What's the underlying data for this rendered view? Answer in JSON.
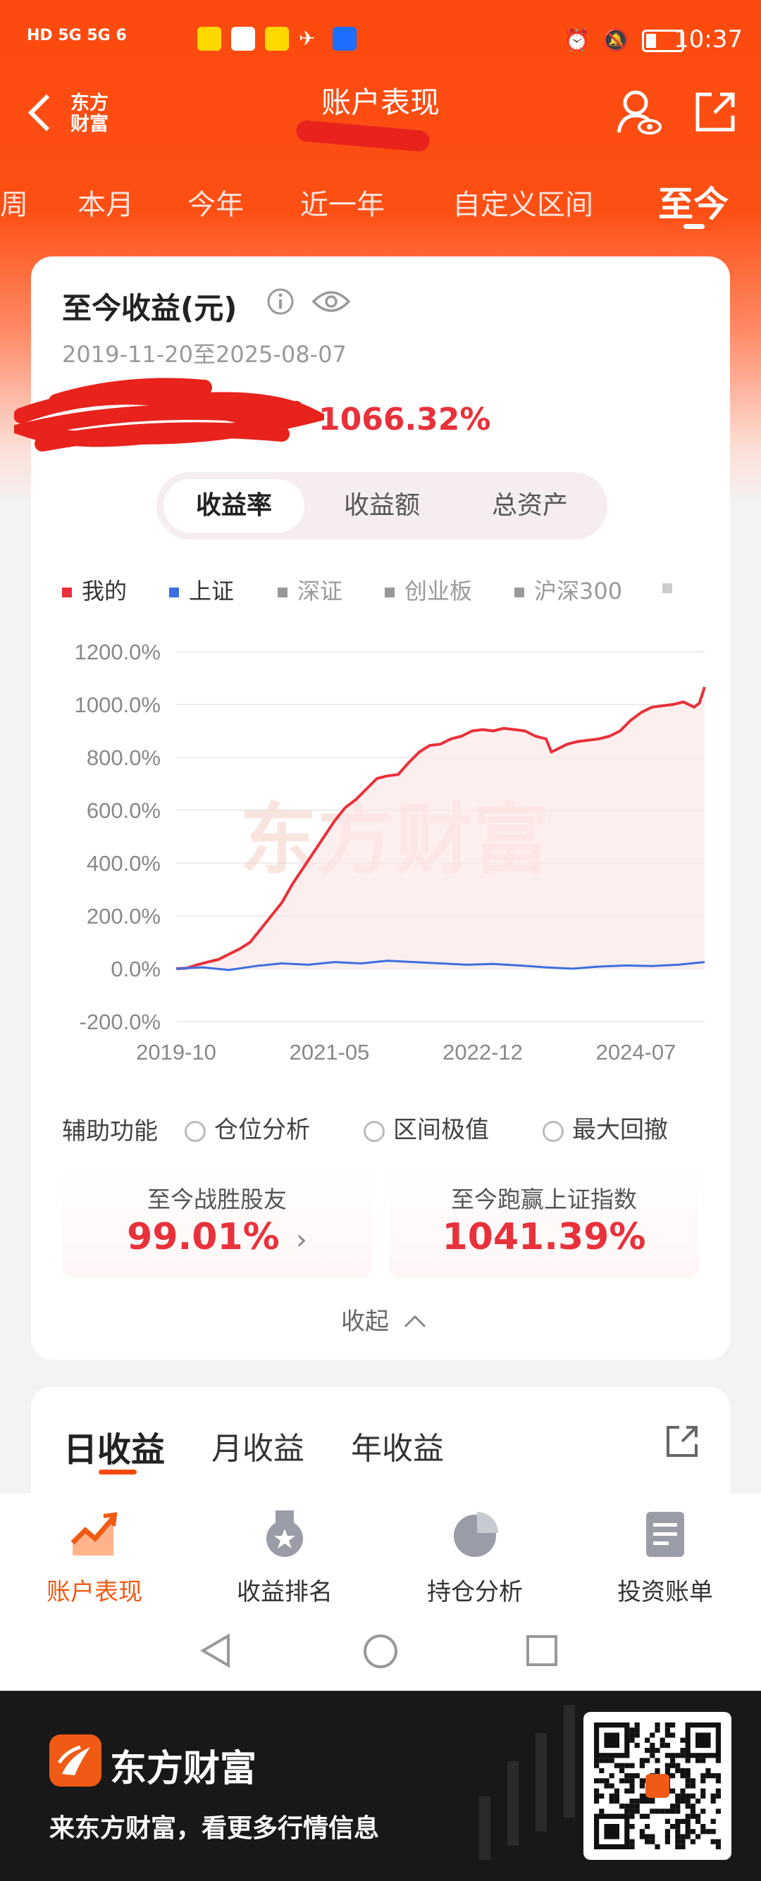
{
  "status_bar": {
    "left": "HD 5G 5G 6",
    "time": "10:37"
  },
  "header": {
    "title": "账户表现",
    "logo_text": "东方财富",
    "back_icon": "chevron-left-icon",
    "user_icon": "user-eye-icon",
    "share_icon": "share-icon"
  },
  "period_tabs": [
    {
      "label": "周"
    },
    {
      "label": "本月"
    },
    {
      "label": "今年"
    },
    {
      "label": "近一年"
    },
    {
      "label": "自定义区间"
    },
    {
      "label": "至今",
      "active": true
    }
  ],
  "summary": {
    "title": "至今收益(元)",
    "date_range": "2019-11-20至2025-08-07",
    "return_pct": "1066.32%"
  },
  "segment": {
    "options": [
      "收益率",
      "收益额",
      "总资产"
    ],
    "selected": "收益率"
  },
  "legend": [
    {
      "label": "我的",
      "color": "#e8313a"
    },
    {
      "label": "上证",
      "color": "#3c6fe0"
    },
    {
      "label": "深证",
      "color": "#999999"
    },
    {
      "label": "创业板",
      "color": "#999999"
    },
    {
      "label": "沪深300",
      "color": "#999999"
    }
  ],
  "chart_data": {
    "type": "line",
    "y_ticks": [
      "1200.0%",
      "1000.0%",
      "800.0%",
      "600.0%",
      "400.0%",
      "200.0%",
      "0.0%",
      "-200.0%"
    ],
    "x_ticks": [
      "2019-10",
      "2021-05",
      "2022-12",
      "2024-07"
    ],
    "ylim": [
      -200,
      1200
    ],
    "watermark": "东方财富",
    "series": [
      {
        "name": "我的",
        "color": "#e8313a",
        "points": [
          [
            0,
            0
          ],
          [
            0.02,
            2
          ],
          [
            0.04,
            15
          ],
          [
            0.06,
            25
          ],
          [
            0.08,
            35
          ],
          [
            0.1,
            55
          ],
          [
            0.12,
            75
          ],
          [
            0.14,
            100
          ],
          [
            0.16,
            150
          ],
          [
            0.18,
            200
          ],
          [
            0.2,
            250
          ],
          [
            0.22,
            320
          ],
          [
            0.24,
            380
          ],
          [
            0.26,
            440
          ],
          [
            0.28,
            500
          ],
          [
            0.3,
            560
          ],
          [
            0.32,
            610
          ],
          [
            0.34,
            640
          ],
          [
            0.36,
            680
          ],
          [
            0.38,
            720
          ],
          [
            0.4,
            730
          ],
          [
            0.42,
            735
          ],
          [
            0.44,
            780
          ],
          [
            0.46,
            820
          ],
          [
            0.48,
            845
          ],
          [
            0.5,
            850
          ],
          [
            0.52,
            870
          ],
          [
            0.54,
            880
          ],
          [
            0.56,
            900
          ],
          [
            0.58,
            905
          ],
          [
            0.6,
            900
          ],
          [
            0.62,
            910
          ],
          [
            0.64,
            905
          ],
          [
            0.66,
            900
          ],
          [
            0.68,
            880
          ],
          [
            0.7,
            870
          ],
          [
            0.71,
            820
          ],
          [
            0.72,
            830
          ],
          [
            0.74,
            850
          ],
          [
            0.76,
            860
          ],
          [
            0.78,
            865
          ],
          [
            0.8,
            870
          ],
          [
            0.82,
            880
          ],
          [
            0.84,
            900
          ],
          [
            0.86,
            940
          ],
          [
            0.88,
            970
          ],
          [
            0.9,
            990
          ],
          [
            0.92,
            995
          ],
          [
            0.94,
            1000
          ],
          [
            0.96,
            1010
          ],
          [
            0.98,
            990
          ],
          [
            0.99,
            1005
          ],
          [
            1.0,
            1066
          ]
        ]
      },
      {
        "name": "上证",
        "color": "#3c6fe0",
        "points": [
          [
            0,
            0
          ],
          [
            0.05,
            5
          ],
          [
            0.1,
            -5
          ],
          [
            0.15,
            10
          ],
          [
            0.2,
            20
          ],
          [
            0.25,
            15
          ],
          [
            0.3,
            25
          ],
          [
            0.35,
            20
          ],
          [
            0.4,
            30
          ],
          [
            0.45,
            25
          ],
          [
            0.5,
            20
          ],
          [
            0.55,
            15
          ],
          [
            0.6,
            18
          ],
          [
            0.65,
            12
          ],
          [
            0.7,
            5
          ],
          [
            0.75,
            0
          ],
          [
            0.8,
            8
          ],
          [
            0.85,
            12
          ],
          [
            0.9,
            10
          ],
          [
            0.95,
            15
          ],
          [
            1.0,
            25
          ]
        ]
      }
    ]
  },
  "aux": {
    "label": "辅助功能",
    "options": [
      "仓位分析",
      "区间极值",
      "最大回撤"
    ]
  },
  "stats": [
    {
      "label": "至今战胜股友",
      "value": "99.01%",
      "arrow": "›"
    },
    {
      "label": "至今跑赢上证指数",
      "value": "1041.39%"
    }
  ],
  "collapse_label": "收起",
  "income_tabs": [
    {
      "label": "日收益",
      "active": true
    },
    {
      "label": "月收益"
    },
    {
      "label": "年收益"
    }
  ],
  "bottom_nav": [
    {
      "label": "账户表现",
      "icon": "trend-chart-icon",
      "active": true
    },
    {
      "label": "收益排名",
      "icon": "medal-icon"
    },
    {
      "label": "持仓分析",
      "icon": "pie-chart-icon"
    },
    {
      "label": "投资账单",
      "icon": "bill-icon"
    }
  ],
  "footer": {
    "brand": "东方财富",
    "slogan": "来东方财富，看更多行情信息"
  },
  "colors": {
    "accent": "#fd4a0e",
    "red": "#e8313a"
  }
}
